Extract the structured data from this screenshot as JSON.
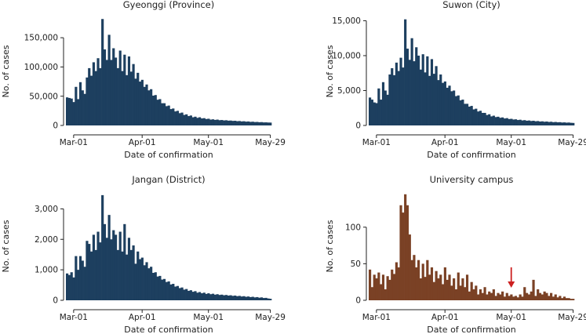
{
  "chart_data": [
    {
      "id": "gyeonggi",
      "type": "bar",
      "title": "Gyeonggi (Province)",
      "xlabel": "Date of confirmation",
      "ylabel": "No. of cases",
      "ylim": [
        0,
        185000
      ],
      "yticks": [
        0,
        50000,
        100000,
        150000
      ],
      "ytick_labels": [
        "0",
        "50,000",
        "100,000",
        "150,000"
      ],
      "xticks": [
        "Mar-01",
        "Apr-01",
        "May-01",
        "May-29"
      ],
      "xtick_days": [
        3,
        34,
        64,
        92
      ],
      "bar_color": "#1d3f5f",
      "x_start_label": "Feb-27",
      "values": [
        48000,
        47000,
        46000,
        40000,
        66000,
        45000,
        74000,
        60000,
        54000,
        82000,
        98000,
        85000,
        108000,
        93000,
        115000,
        98000,
        182000,
        130000,
        112000,
        155000,
        112000,
        132000,
        116000,
        98000,
        128000,
        93000,
        121000,
        86000,
        118000,
        92000,
        105000,
        80000,
        90000,
        75000,
        78000,
        66000,
        70000,
        60000,
        62000,
        51000,
        52000,
        44000,
        45000,
        38000,
        38000,
        33000,
        34000,
        28000,
        29000,
        24000,
        25000,
        21000,
        22000,
        18000,
        19000,
        16000,
        17000,
        14000,
        15000,
        13000,
        14000,
        12000,
        12500,
        11000,
        11500,
        10000,
        10500,
        9500,
        10000,
        9000,
        9300,
        8600,
        8900,
        8200,
        8400,
        7800,
        8000,
        7300,
        7600,
        6900,
        7200,
        6500,
        6800,
        6100,
        6400,
        5800,
        6000,
        5500,
        5700,
        5200,
        5300,
        5000,
        4900
      ]
    },
    {
      "id": "suwon",
      "type": "bar",
      "title": "Suwon (City)",
      "xlabel": "Date of confirmation",
      "ylabel": "No. of cases",
      "ylim": [
        0,
        15500
      ],
      "yticks": [
        0,
        5000,
        10000,
        15000
      ],
      "ytick_labels": [
        "0",
        "5,000",
        "10,000",
        "15,000"
      ],
      "xticks": [
        "Mar-01",
        "Apr-01",
        "May-01",
        "May-29"
      ],
      "xtick_days": [
        3,
        34,
        64,
        92
      ],
      "bar_color": "#1d3f5f",
      "x_start_label": "Feb-27",
      "values": [
        4000,
        3700,
        3300,
        3200,
        5300,
        3700,
        6200,
        5000,
        4400,
        7300,
        8200,
        7200,
        9000,
        7800,
        9700,
        8300,
        15200,
        11000,
        9400,
        12500,
        9200,
        11200,
        10000,
        8000,
        10200,
        7600,
        9900,
        7100,
        9500,
        7400,
        8500,
        6500,
        7300,
        6100,
        6300,
        5400,
        5700,
        4900,
        5000,
        4200,
        4300,
        3600,
        3700,
        3100,
        3100,
        2700,
        2800,
        2300,
        2400,
        2000,
        2100,
        1800,
        1800,
        1500,
        1600,
        1300,
        1400,
        1200,
        1250,
        1100,
        1150,
        1000,
        1050,
        920,
        950,
        850,
        880,
        780,
        820,
        720,
        760,
        680,
        710,
        640,
        670,
        600,
        630,
        560,
        590,
        530,
        560,
        500,
        530,
        470,
        500,
        450,
        470,
        420,
        440,
        400,
        420,
        380,
        360
      ]
    },
    {
      "id": "jangan",
      "type": "bar",
      "title": "Jangan (District)",
      "xlabel": "Date of confirmation",
      "ylabel": "No. of cases",
      "ylim": [
        0,
        3550
      ],
      "yticks": [
        0,
        1000,
        2000,
        3000
      ],
      "ytick_labels": [
        "0",
        "1,000",
        "2,000",
        "3,000"
      ],
      "xticks": [
        "Mar-01",
        "Apr-01",
        "May-01",
        "May-29"
      ],
      "xtick_days": [
        3,
        34,
        64,
        92
      ],
      "bar_color": "#1d3f5f",
      "x_start_label": "Feb-27",
      "values": [
        880,
        830,
        920,
        750,
        1450,
        1000,
        1450,
        1300,
        1100,
        1950,
        1850,
        1600,
        2150,
        1650,
        2250,
        1900,
        3450,
        2500,
        2050,
        2800,
        2000,
        2300,
        2150,
        1650,
        2250,
        1600,
        2500,
        1500,
        2050,
        1650,
        1800,
        1200,
        1600,
        1350,
        1400,
        1150,
        1250,
        1050,
        1100,
        900,
        920,
        780,
        800,
        680,
        700,
        600,
        620,
        520,
        540,
        450,
        470,
        400,
        420,
        350,
        370,
        310,
        330,
        280,
        300,
        250,
        270,
        230,
        250,
        210,
        230,
        200,
        215,
        185,
        200,
        175,
        185,
        165,
        175,
        155,
        165,
        145,
        155,
        135,
        145,
        125,
        135,
        115,
        125,
        105,
        115,
        95,
        105,
        85,
        95,
        75,
        80,
        60,
        50
      ]
    },
    {
      "id": "campus",
      "type": "bar",
      "title": "University campus",
      "xlabel": "Date of confirmation",
      "ylabel": "No. of cases",
      "ylim": [
        0,
        148
      ],
      "yticks": [
        0,
        50,
        100
      ],
      "ytick_labels": [
        "0",
        "50",
        "100"
      ],
      "xticks": [
        "Mar-01",
        "Apr-01",
        "May-01",
        "May-29"
      ],
      "xtick_days": [
        3,
        34,
        64,
        92
      ],
      "bar_color": "#7a4125",
      "x_start_label": "Feb-27",
      "annotation": {
        "type": "red-arrow",
        "day": 64,
        "color": "#cc2020"
      },
      "values": [
        42,
        18,
        35,
        30,
        38,
        22,
        35,
        15,
        33,
        28,
        42,
        36,
        52,
        45,
        130,
        120,
        145,
        130,
        90,
        55,
        62,
        45,
        55,
        30,
        50,
        32,
        55,
        35,
        45,
        25,
        40,
        30,
        35,
        22,
        45,
        28,
        35,
        20,
        30,
        15,
        38,
        20,
        30,
        18,
        35,
        12,
        25,
        15,
        20,
        8,
        15,
        10,
        18,
        8,
        12,
        10,
        15,
        6,
        10,
        8,
        12,
        5,
        10,
        6,
        8,
        5,
        6,
        4,
        8,
        5,
        18,
        10,
        8,
        12,
        28,
        6,
        15,
        10,
        8,
        12,
        10,
        6,
        10,
        5,
        8,
        4,
        6,
        3,
        5,
        3,
        3,
        2,
        2
      ]
    }
  ]
}
